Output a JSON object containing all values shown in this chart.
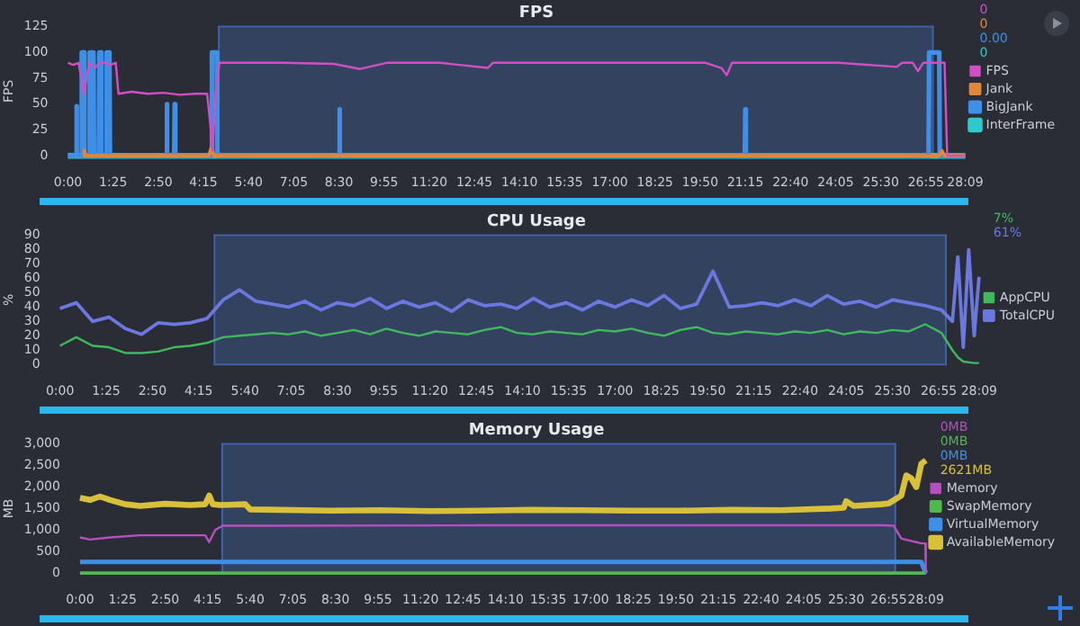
{
  "chart_data": [
    {
      "type": "line",
      "title": "FPS",
      "ylabel": "FPS",
      "xlim": [
        0,
        1689
      ],
      "ylim": [
        0,
        125
      ],
      "yticks": [
        0,
        25,
        50,
        75,
        100,
        125
      ],
      "xticks": [
        {
          "value": 0,
          "label": "0:00"
        },
        {
          "value": 85,
          "label": "1:25"
        },
        {
          "value": 170,
          "label": "2:50"
        },
        {
          "value": 255,
          "label": "4:15"
        },
        {
          "value": 340,
          "label": "5:40"
        },
        {
          "value": 425,
          "label": "7:05"
        },
        {
          "value": 510,
          "label": "8:30"
        },
        {
          "value": 595,
          "label": "9:55"
        },
        {
          "value": 680,
          "label": "11:20"
        },
        {
          "value": 765,
          "label": "12:45"
        },
        {
          "value": 850,
          "label": "14:10"
        },
        {
          "value": 935,
          "label": "15:35"
        },
        {
          "value": 1020,
          "label": "17:00"
        },
        {
          "value": 1105,
          "label": "18:25"
        },
        {
          "value": 1190,
          "label": "19:50"
        },
        {
          "value": 1275,
          "label": "21:15"
        },
        {
          "value": 1360,
          "label": "22:40"
        },
        {
          "value": 1445,
          "label": "24:05"
        },
        {
          "value": 1530,
          "label": "25:30"
        },
        {
          "value": 1615,
          "label": "26:55"
        },
        {
          "value": 1689,
          "label": "28:09"
        }
      ],
      "grid": false,
      "legend": "right",
      "marker": "none",
      "bands": [
        {
          "axis": "x",
          "from": 284,
          "to": 1628,
          "color": "#33425f"
        }
      ],
      "annotations": [
        "0",
        "0",
        "0.00",
        "0"
      ],
      "series": [
        {
          "name": "FPS",
          "color": "#d14fc4",
          "x": [
            0,
            10,
            20,
            30,
            40,
            50,
            60,
            70,
            80,
            90,
            95,
            120,
            150,
            180,
            210,
            240,
            262,
            268,
            272,
            278,
            285,
            320,
            400,
            500,
            550,
            600,
            700,
            790,
            800,
            900,
            1000,
            1100,
            1200,
            1230,
            1240,
            1250,
            1350,
            1450,
            1560,
            1570,
            1590,
            1600,
            1610,
            1650,
            1655,
            1689
          ],
          "values": [
            90,
            88,
            90,
            60,
            90,
            85,
            90,
            90,
            88,
            90,
            60,
            62,
            60,
            61,
            59,
            60,
            60,
            30,
            5,
            60,
            90,
            90,
            90,
            89,
            84,
            90,
            90,
            85,
            90,
            90,
            90,
            90,
            90,
            85,
            78,
            90,
            90,
            90,
            86,
            90,
            90,
            82,
            90,
            90,
            0,
            0
          ]
        },
        {
          "name": "Jank",
          "color": "#e0873a",
          "x": [
            30,
            31,
            32,
            265,
            270,
            275,
            1640,
            1645,
            1650,
            1689
          ],
          "values": [
            0,
            5,
            0,
            0,
            8,
            0,
            0,
            5,
            0,
            0
          ]
        },
        {
          "name": "BigJank",
          "color": "#3f8fe6",
          "x": [
            0,
            15,
            16,
            17,
            25,
            26,
            30,
            31,
            40,
            41,
            48,
            49,
            58,
            59,
            62,
            63,
            72,
            73,
            78,
            79,
            185,
            186,
            187,
            200,
            201,
            202,
            270,
            271,
            280,
            281,
            510,
            511,
            512,
            1274,
            1275,
            1276,
            1620,
            1621,
            1640,
            1641,
            1689
          ],
          "values": [
            0,
            0,
            48,
            0,
            0,
            100,
            100,
            0,
            0,
            100,
            100,
            0,
            0,
            100,
            100,
            0,
            0,
            100,
            100,
            0,
            0,
            50,
            0,
            0,
            50,
            0,
            0,
            100,
            100,
            0,
            0,
            45,
            0,
            0,
            45,
            0,
            0,
            100,
            100,
            0,
            0
          ]
        },
        {
          "name": "InterFrame",
          "color": "#2ec9c9",
          "x": [
            0,
            1689
          ],
          "values": [
            0,
            0
          ]
        }
      ]
    },
    {
      "type": "line",
      "title": "CPU Usage",
      "ylabel": "%",
      "xlim": [
        0,
        1689
      ],
      "ylim": [
        0,
        90
      ],
      "yticks": [
        0,
        10,
        20,
        30,
        40,
        50,
        60,
        70,
        80,
        90
      ],
      "xticks": [
        {
          "value": 0,
          "label": "0:00"
        },
        {
          "value": 85,
          "label": "1:25"
        },
        {
          "value": 170,
          "label": "2:50"
        },
        {
          "value": 255,
          "label": "4:15"
        },
        {
          "value": 340,
          "label": "5:40"
        },
        {
          "value": 425,
          "label": "7:05"
        },
        {
          "value": 510,
          "label": "8:30"
        },
        {
          "value": 595,
          "label": "9:55"
        },
        {
          "value": 680,
          "label": "11:20"
        },
        {
          "value": 765,
          "label": "12:45"
        },
        {
          "value": 850,
          "label": "14:10"
        },
        {
          "value": 935,
          "label": "15:35"
        },
        {
          "value": 1020,
          "label": "17:00"
        },
        {
          "value": 1105,
          "label": "18:25"
        },
        {
          "value": 1190,
          "label": "19:50"
        },
        {
          "value": 1275,
          "label": "21:15"
        },
        {
          "value": 1360,
          "label": "22:40"
        },
        {
          "value": 1445,
          "label": "24:05"
        },
        {
          "value": 1530,
          "label": "25:30"
        },
        {
          "value": 1615,
          "label": "26:55"
        },
        {
          "value": 1689,
          "label": "28:09"
        }
      ],
      "grid": false,
      "legend": "right",
      "marker": "none",
      "bands": [
        {
          "axis": "x",
          "from": 284,
          "to": 1628,
          "color": "#33425f"
        }
      ],
      "annotations": [
        "7%",
        "61%"
      ],
      "series": [
        {
          "name": "AppCPU",
          "color": "#3fb85e",
          "x": [
            0,
            30,
            60,
            90,
            120,
            150,
            180,
            210,
            240,
            270,
            300,
            330,
            360,
            390,
            420,
            450,
            480,
            510,
            540,
            570,
            600,
            630,
            660,
            690,
            720,
            750,
            780,
            810,
            840,
            870,
            900,
            930,
            960,
            990,
            1020,
            1050,
            1080,
            1110,
            1140,
            1170,
            1200,
            1230,
            1260,
            1290,
            1320,
            1350,
            1380,
            1410,
            1440,
            1470,
            1500,
            1530,
            1560,
            1590,
            1620,
            1640,
            1650,
            1660,
            1680,
            1689
          ],
          "values": [
            13,
            19,
            13,
            12,
            8,
            8,
            9,
            12,
            13,
            15,
            19,
            20,
            21,
            22,
            21,
            23,
            20,
            22,
            24,
            21,
            25,
            22,
            20,
            23,
            22,
            21,
            24,
            26,
            22,
            21,
            23,
            22,
            21,
            24,
            23,
            25,
            22,
            20,
            24,
            26,
            22,
            21,
            23,
            22,
            21,
            23,
            22,
            24,
            21,
            23,
            22,
            24,
            23,
            28,
            22,
            10,
            5,
            2,
            1,
            1
          ]
        },
        {
          "name": "TotalCPU",
          "color": "#6b78e0",
          "x": [
            0,
            30,
            60,
            90,
            120,
            150,
            180,
            210,
            240,
            270,
            300,
            330,
            360,
            390,
            420,
            450,
            480,
            510,
            540,
            570,
            600,
            630,
            660,
            690,
            720,
            750,
            780,
            810,
            840,
            870,
            900,
            930,
            960,
            990,
            1020,
            1050,
            1080,
            1110,
            1140,
            1170,
            1200,
            1230,
            1260,
            1290,
            1320,
            1350,
            1380,
            1410,
            1440,
            1470,
            1500,
            1530,
            1560,
            1590,
            1620,
            1640,
            1650,
            1660,
            1670,
            1680,
            1689
          ],
          "values": [
            39,
            43,
            30,
            33,
            25,
            21,
            29,
            28,
            29,
            32,
            45,
            52,
            44,
            42,
            40,
            44,
            38,
            43,
            41,
            46,
            39,
            44,
            40,
            43,
            37,
            45,
            41,
            42,
            39,
            46,
            40,
            43,
            38,
            44,
            40,
            45,
            41,
            48,
            39,
            42,
            65,
            40,
            41,
            43,
            41,
            45,
            41,
            48,
            42,
            44,
            40,
            45,
            43,
            41,
            38,
            30,
            75,
            12,
            80,
            20,
            61
          ]
        }
      ]
    },
    {
      "type": "line",
      "title": "Memory Usage",
      "ylabel": "MB",
      "xlim": [
        0,
        1689
      ],
      "ylim": [
        0,
        3000
      ],
      "yticks": [
        {
          "value": 0,
          "label": "0"
        },
        {
          "value": 500,
          "label": "500"
        },
        {
          "value": 1000,
          "label": "1,000"
        },
        {
          "value": 1500,
          "label": "1,500"
        },
        {
          "value": 2000,
          "label": "2,000"
        },
        {
          "value": 2500,
          "label": "2,500"
        },
        {
          "value": 3000,
          "label": "3,000"
        }
      ],
      "xticks": [
        {
          "value": 0,
          "label": "0:00"
        },
        {
          "value": 85,
          "label": "1:25"
        },
        {
          "value": 170,
          "label": "2:50"
        },
        {
          "value": 255,
          "label": "4:15"
        },
        {
          "value": 340,
          "label": "5:40"
        },
        {
          "value": 425,
          "label": "7:05"
        },
        {
          "value": 510,
          "label": "8:30"
        },
        {
          "value": 595,
          "label": "9:55"
        },
        {
          "value": 680,
          "label": "11:20"
        },
        {
          "value": 765,
          "label": "12:45"
        },
        {
          "value": 850,
          "label": "14:10"
        },
        {
          "value": 935,
          "label": "15:35"
        },
        {
          "value": 1020,
          "label": "17:00"
        },
        {
          "value": 1105,
          "label": "18:25"
        },
        {
          "value": 1190,
          "label": "19:50"
        },
        {
          "value": 1275,
          "label": "21:15"
        },
        {
          "value": 1360,
          "label": "22:40"
        },
        {
          "value": 1445,
          "label": "24:05"
        },
        {
          "value": 1530,
          "label": "25:30"
        },
        {
          "value": 1615,
          "label": "26:55"
        },
        {
          "value": 1689,
          "label": "28:09"
        }
      ],
      "grid": false,
      "legend": "right",
      "marker": "none",
      "bands": [
        {
          "axis": "x",
          "from": 284,
          "to": 1628,
          "color": "#33425f"
        }
      ],
      "annotations": [
        "0MB",
        "0MB",
        "0MB",
        "2621MB"
      ],
      "series": [
        {
          "name": "Memory",
          "color": "#b84fc0",
          "x": [
            0,
            20,
            60,
            120,
            200,
            250,
            258,
            270,
            285,
            400,
            800,
            1200,
            1600,
            1625,
            1640,
            1680,
            1688,
            1689
          ],
          "values": [
            830,
            780,
            830,
            880,
            880,
            880,
            720,
            1000,
            1100,
            1100,
            1110,
            1110,
            1110,
            1100,
            800,
            690,
            690,
            0
          ]
        },
        {
          "name": "SwapMemory",
          "color": "#4fb84f",
          "x": [
            0,
            1689
          ],
          "values": [
            0,
            0
          ]
        },
        {
          "name": "VirtualMemory",
          "color": "#3f8fe6",
          "x": [
            0,
            1680,
            1689
          ],
          "values": [
            260,
            260,
            0
          ]
        },
        {
          "name": "AvailableMemory",
          "color": "#d8c03a",
          "x": [
            0,
            20,
            40,
            60,
            90,
            120,
            170,
            220,
            250,
            258,
            265,
            280,
            330,
            340,
            400,
            500,
            600,
            700,
            800,
            900,
            1000,
            1100,
            1200,
            1300,
            1400,
            1500,
            1525,
            1530,
            1545,
            1600,
            1615,
            1640,
            1650,
            1660,
            1670,
            1680,
            1689
          ],
          "values": [
            1750,
            1700,
            1780,
            1700,
            1600,
            1560,
            1610,
            1580,
            1600,
            1800,
            1600,
            1580,
            1600,
            1480,
            1470,
            1450,
            1460,
            1440,
            1450,
            1470,
            1460,
            1450,
            1450,
            1470,
            1460,
            1500,
            1520,
            1670,
            1560,
            1600,
            1620,
            1800,
            2270,
            2200,
            2000,
            2540,
            2621
          ]
        }
      ]
    }
  ]
}
